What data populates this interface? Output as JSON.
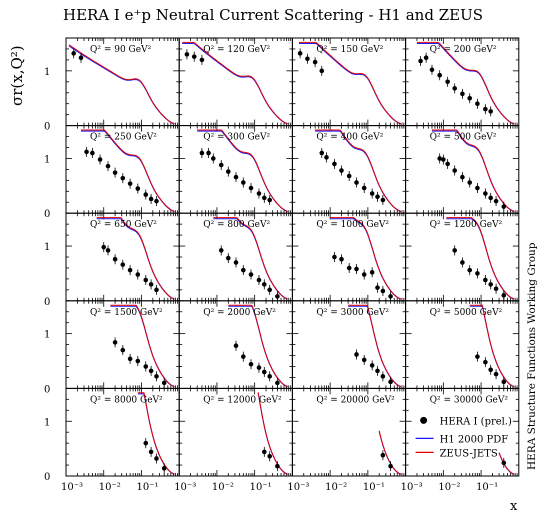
{
  "title": "HERA I e⁺p Neutral Current Scattering - H1 and ZEUS",
  "side_label": "HERA Structure Functions Working Group",
  "colors": {
    "pdf_h1": "#1a1aff",
    "pdf_zeus": "#e00000",
    "points": "#000000"
  },
  "chart_data": {
    "type": "scatter",
    "layout": "5x4 panel grid",
    "ylabel": "σr(x,Q²)",
    "xlabel": "x",
    "xscale": "log",
    "xlim": [
      0.001,
      1.0
    ],
    "ylim": [
      0,
      1.6
    ],
    "x_tick_labels": [
      "10⁻³",
      "10⁻²",
      "10⁻¹"
    ],
    "y_tick_labels": [
      "0",
      "1"
    ],
    "legend": {
      "placement": "bottom-right panel",
      "entries": [
        "HERA I (prel.)",
        "H1 2000 PDF",
        "ZEUS-JETS"
      ]
    },
    "panels": [
      {
        "q2_label": "Q² = 90 GeV²",
        "points": [
          [
            0.0016,
            1.32
          ],
          [
            0.0025,
            1.24
          ]
        ]
      },
      {
        "q2_label": "Q² = 120 GeV²",
        "points": [
          [
            0.0016,
            1.3
          ],
          [
            0.0025,
            1.26
          ],
          [
            0.004,
            1.2
          ]
        ]
      },
      {
        "q2_label": "Q² = 150 GeV²",
        "points": [
          [
            0.0016,
            1.32
          ],
          [
            0.0025,
            1.22
          ],
          [
            0.004,
            1.16
          ],
          [
            0.006,
            1.0
          ]
        ]
      },
      {
        "q2_label": "Q² = 200 GeV²",
        "points": [
          [
            0.0025,
            1.18
          ],
          [
            0.0035,
            1.24
          ],
          [
            0.005,
            1.02
          ],
          [
            0.008,
            0.92
          ],
          [
            0.013,
            0.8
          ],
          [
            0.02,
            0.68
          ],
          [
            0.032,
            0.58
          ],
          [
            0.05,
            0.5
          ],
          [
            0.08,
            0.4
          ],
          [
            0.13,
            0.3
          ],
          [
            0.18,
            0.26
          ]
        ]
      },
      {
        "q2_label": "Q² = 250 GeV²",
        "points": [
          [
            0.0035,
            1.12
          ],
          [
            0.005,
            1.1
          ],
          [
            0.008,
            0.98
          ],
          [
            0.013,
            0.86
          ],
          [
            0.02,
            0.74
          ],
          [
            0.032,
            0.64
          ],
          [
            0.05,
            0.54
          ],
          [
            0.08,
            0.45
          ],
          [
            0.13,
            0.34
          ],
          [
            0.18,
            0.26
          ],
          [
            0.25,
            0.22
          ]
        ]
      },
      {
        "q2_label": "Q² = 300 GeV²",
        "points": [
          [
            0.004,
            1.1
          ],
          [
            0.006,
            1.1
          ],
          [
            0.008,
            1.0
          ],
          [
            0.013,
            0.88
          ],
          [
            0.02,
            0.76
          ],
          [
            0.032,
            0.66
          ],
          [
            0.05,
            0.56
          ],
          [
            0.08,
            0.46
          ],
          [
            0.13,
            0.36
          ],
          [
            0.18,
            0.28
          ],
          [
            0.25,
            0.24
          ]
        ]
      },
      {
        "q2_label": "Q² = 400 GeV²",
        "points": [
          [
            0.006,
            1.1
          ],
          [
            0.008,
            1.02
          ],
          [
            0.013,
            0.9
          ],
          [
            0.02,
            0.78
          ],
          [
            0.032,
            0.68
          ],
          [
            0.05,
            0.56
          ],
          [
            0.08,
            0.46
          ],
          [
            0.13,
            0.36
          ],
          [
            0.18,
            0.3
          ],
          [
            0.25,
            0.24
          ]
        ]
      },
      {
        "q2_label": "Q² = 500 GeV²",
        "points": [
          [
            0.008,
            1.0
          ],
          [
            0.01,
            0.98
          ],
          [
            0.013,
            0.9
          ],
          [
            0.02,
            0.78
          ],
          [
            0.032,
            0.66
          ],
          [
            0.05,
            0.56
          ],
          [
            0.08,
            0.46
          ],
          [
            0.13,
            0.36
          ],
          [
            0.18,
            0.28
          ],
          [
            0.25,
            0.22
          ],
          [
            0.4,
            0.12
          ]
        ]
      },
      {
        "q2_label": "Q² = 650 GeV²",
        "points": [
          [
            0.01,
            0.98
          ],
          [
            0.013,
            0.92
          ],
          [
            0.02,
            0.76
          ],
          [
            0.032,
            0.66
          ],
          [
            0.05,
            0.56
          ],
          [
            0.08,
            0.48
          ],
          [
            0.13,
            0.38
          ],
          [
            0.18,
            0.3
          ],
          [
            0.25,
            0.2
          ]
        ]
      },
      {
        "q2_label": "Q² = 800 GeV²",
        "points": [
          [
            0.013,
            0.92
          ],
          [
            0.02,
            0.78
          ],
          [
            0.032,
            0.7
          ],
          [
            0.05,
            0.56
          ],
          [
            0.08,
            0.48
          ],
          [
            0.13,
            0.38
          ],
          [
            0.18,
            0.3
          ],
          [
            0.25,
            0.2
          ],
          [
            0.4,
            0.08
          ]
        ]
      },
      {
        "q2_label": "Q² = 1000 GeV²",
        "points": [
          [
            0.013,
            0.8
          ],
          [
            0.02,
            0.76
          ],
          [
            0.032,
            0.6
          ],
          [
            0.05,
            0.58
          ],
          [
            0.08,
            0.48
          ],
          [
            0.13,
            0.52
          ],
          [
            0.18,
            0.24
          ],
          [
            0.25,
            0.18
          ],
          [
            0.4,
            0.08
          ]
        ]
      },
      {
        "q2_label": "Q² = 1200 GeV²",
        "points": [
          [
            0.02,
            0.92
          ],
          [
            0.032,
            0.7
          ],
          [
            0.05,
            0.56
          ],
          [
            0.08,
            0.5
          ],
          [
            0.13,
            0.38
          ],
          [
            0.18,
            0.3
          ],
          [
            0.25,
            0.22
          ],
          [
            0.4,
            0.1
          ]
        ]
      },
      {
        "q2_label": "Q² = 1500 GeV²",
        "points": [
          [
            0.02,
            0.84
          ],
          [
            0.032,
            0.7
          ],
          [
            0.05,
            0.54
          ],
          [
            0.08,
            0.5
          ],
          [
            0.13,
            0.4
          ],
          [
            0.18,
            0.32
          ],
          [
            0.25,
            0.22
          ],
          [
            0.4,
            0.1
          ]
        ]
      },
      {
        "q2_label": "Q² = 2000 GeV²",
        "points": [
          [
            0.032,
            0.78
          ],
          [
            0.05,
            0.58
          ],
          [
            0.08,
            0.44
          ],
          [
            0.13,
            0.38
          ],
          [
            0.18,
            0.3
          ],
          [
            0.25,
            0.22
          ],
          [
            0.4,
            0.1
          ]
        ]
      },
      {
        "q2_label": "Q² = 3000 GeV²",
        "points": [
          [
            0.05,
            0.62
          ],
          [
            0.08,
            0.52
          ],
          [
            0.13,
            0.42
          ],
          [
            0.18,
            0.32
          ],
          [
            0.25,
            0.22
          ],
          [
            0.4,
            0.12
          ]
        ]
      },
      {
        "q2_label": "Q² = 5000 GeV²",
        "points": [
          [
            0.08,
            0.58
          ],
          [
            0.13,
            0.48
          ],
          [
            0.18,
            0.34
          ],
          [
            0.25,
            0.26
          ],
          [
            0.4,
            0.12
          ]
        ]
      },
      {
        "q2_label": "Q² = 8000 GeV²",
        "points": [
          [
            0.13,
            0.6
          ],
          [
            0.18,
            0.44
          ],
          [
            0.25,
            0.32
          ],
          [
            0.4,
            0.14
          ]
        ]
      },
      {
        "q2_label": "Q² = 12000 GeV²",
        "points": [
          [
            0.18,
            0.44
          ],
          [
            0.25,
            0.36
          ],
          [
            0.4,
            0.18
          ]
        ]
      },
      {
        "q2_label": "Q² = 20000 GeV²",
        "points": [
          [
            0.25,
            0.38
          ],
          [
            0.4,
            0.18
          ]
        ]
      },
      {
        "q2_label": "Q² = 30000 GeV²",
        "points": [
          [
            0.4,
            0.24
          ]
        ]
      }
    ]
  }
}
